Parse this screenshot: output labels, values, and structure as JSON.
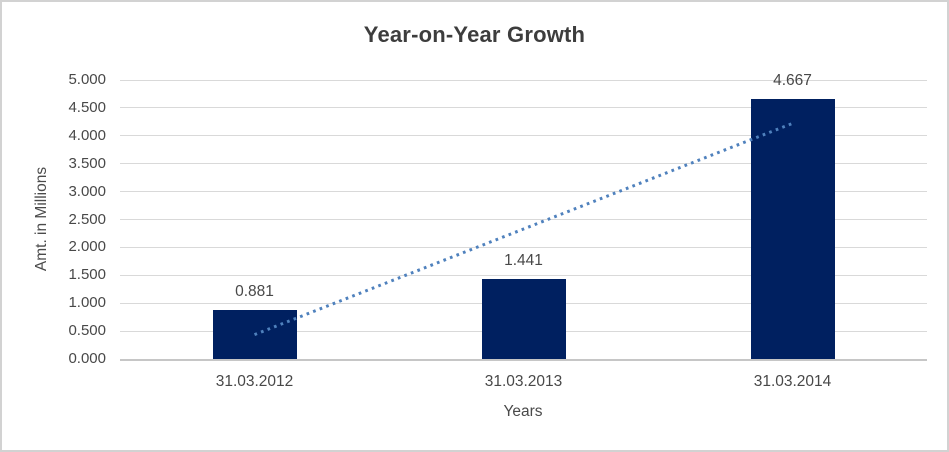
{
  "chart_data": {
    "type": "bar",
    "title": "Year-on-Year Growth",
    "xlabel": "Years",
    "ylabel": "Amt. in Millions",
    "categories": [
      "31.03.2012",
      "31.03.2013",
      "31.03.2014"
    ],
    "values": [
      0.881,
      1.441,
      4.667
    ],
    "data_labels": [
      "0.881",
      "1.441",
      "4.667"
    ],
    "ylim": [
      0,
      5
    ],
    "ytick_step": 0.5,
    "ytick_labels": [
      "0.000",
      "0.500",
      "1.000",
      "1.500",
      "2.000",
      "2.500",
      "3.000",
      "3.500",
      "4.000",
      "4.500",
      "5.000"
    ],
    "grid": "horizontal",
    "legend": "none",
    "trendline": {
      "kind": "linear",
      "style": "dotted"
    },
    "colors": {
      "bar": "#002060",
      "trendline": "#4f81bd",
      "gridline": "#d9d9d9",
      "axis_line": "#c6c6c6",
      "title_text": "#3d3d3d",
      "axis_text": "#4a4a4a",
      "tick_text": "#484848",
      "frame_border": "#d2d2d2",
      "background": "#ffffff"
    }
  }
}
